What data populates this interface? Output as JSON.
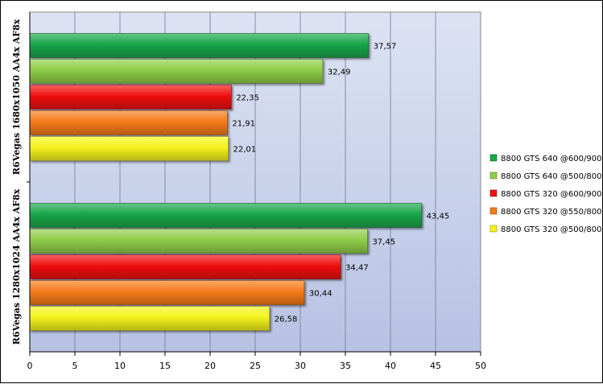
{
  "chart_data": {
    "type": "bar",
    "orientation": "horizontal",
    "title": "",
    "xlabel": "",
    "ylabel": "",
    "xlim": [
      0,
      50
    ],
    "x_ticks": [
      "0",
      "5",
      "10",
      "15",
      "20",
      "25",
      "30",
      "35",
      "40",
      "45",
      "50"
    ],
    "grid": "vertical",
    "legend_position": "right",
    "categories": [
      "R6Vegas 1680x1050 AA4x AF8x",
      "R6Vegas 1280x1024 AA4x AF8x"
    ],
    "series": [
      {
        "name": "8800 GTS 640 @600/900",
        "color": "#1aa64a",
        "values": [
          37.57,
          43.45
        ],
        "labels": [
          "37,57",
          "43,45"
        ]
      },
      {
        "name": "8800 GTS 640 @500/800",
        "color": "#8fcd48",
        "values": [
          32.49,
          37.45
        ],
        "labels": [
          "32,49",
          "37,45"
        ]
      },
      {
        "name": "8800 GTS 320 @600/900",
        "color": "#ee1111",
        "values": [
          22.35,
          34.47
        ],
        "labels": [
          "22,35",
          "34,47"
        ]
      },
      {
        "name": "8800 GTS 320 @550/800",
        "color": "#f57a1a",
        "values": [
          21.91,
          30.44
        ],
        "labels": [
          "21,91",
          "30,44"
        ]
      },
      {
        "name": "8800 GTS 320 @500/800",
        "color": "#f4f21c",
        "values": [
          22.01,
          26.58
        ],
        "labels": [
          "22,01",
          "26,58"
        ]
      }
    ]
  }
}
